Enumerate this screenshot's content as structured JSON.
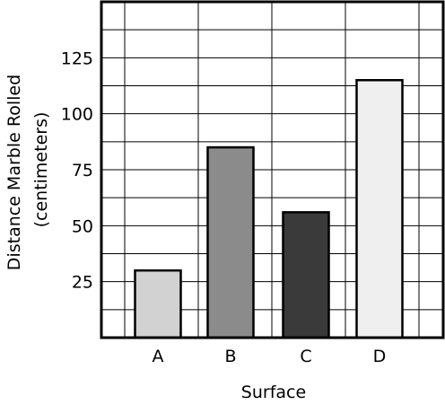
{
  "chart_data": {
    "type": "bar",
    "xlabel": "Surface",
    "ylabel_lines": [
      "Distance Marble Rolled",
      "(centimeters)"
    ],
    "categories": [
      "A",
      "B",
      "C",
      "D"
    ],
    "values": [
      30,
      85,
      56,
      115
    ],
    "bar_colors": [
      "#d2d2d2",
      "#8b8b8b",
      "#3a3a3a",
      "#efefef"
    ],
    "ylim": [
      0,
      150
    ],
    "yticks": [
      25,
      50,
      75,
      100,
      125
    ],
    "ytick_labels": [
      "25",
      "50",
      "75",
      "100",
      "125"
    ],
    "grid": true,
    "legend": "none"
  }
}
